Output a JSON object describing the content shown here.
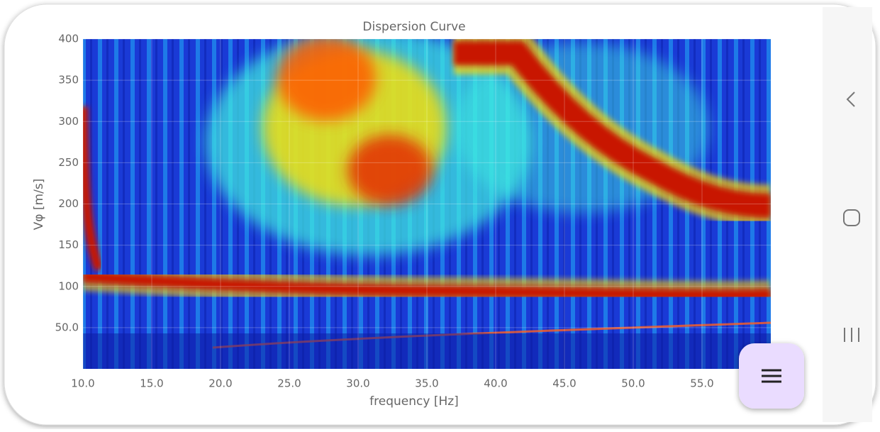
{
  "chart_data": {
    "type": "heatmap",
    "title": "Dispersion Curve",
    "x_label": "frequency [Hz]",
    "y_label": "Vφ [m/s]",
    "xlim": [
      10,
      60
    ],
    "ylim": [
      0,
      400
    ],
    "xticks": [
      {
        "value": 10,
        "label": "10.0"
      },
      {
        "value": 15,
        "label": "15.0"
      },
      {
        "value": 20,
        "label": "20.0"
      },
      {
        "value": 25,
        "label": "25.0"
      },
      {
        "value": 30,
        "label": "30.0"
      },
      {
        "value": 35,
        "label": "35.0"
      },
      {
        "value": 40,
        "label": "40.0"
      },
      {
        "value": 45,
        "label": "45.0"
      },
      {
        "value": 50,
        "label": "50.0"
      },
      {
        "value": 55,
        "label": "55.0"
      }
    ],
    "yticks": [
      {
        "value": 50,
        "label": "50.0"
      },
      100,
      150,
      200,
      250,
      300,
      350,
      400
    ],
    "grid": true
  }
}
